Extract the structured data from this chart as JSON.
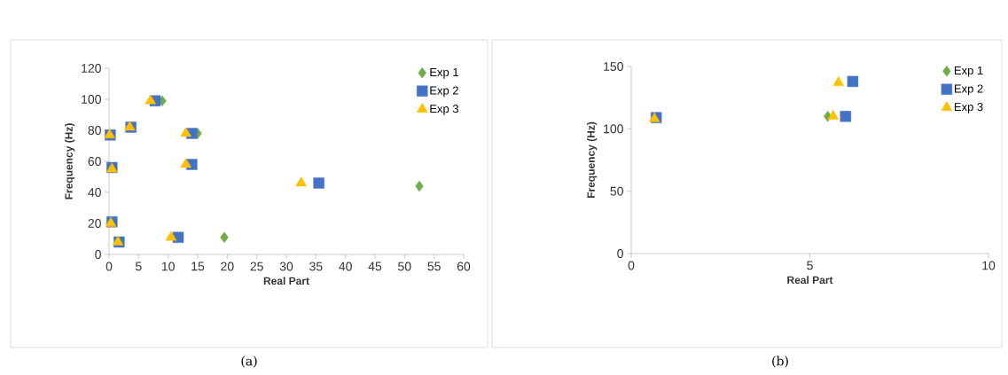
{
  "chart_data": [
    {
      "type": "scatter",
      "xlabel": "Real Part",
      "ylabel": "Frequency (Hz)",
      "annotations": [
        "(a)"
      ],
      "xlim": [
        0,
        60
      ],
      "ylim": [
        0,
        120
      ],
      "xticks": [
        0,
        5,
        10,
        15,
        20,
        25,
        30,
        35,
        40,
        45,
        50,
        55,
        60
      ],
      "yticks": [
        0,
        20,
        40,
        60,
        80,
        100,
        120
      ],
      "legend": "top right",
      "grid": false,
      "series": [
        {
          "name": "Exp 1",
          "color": "#70ad47",
          "marker": "diamond",
          "x": [
            9,
            15,
            19.5,
            52.5
          ],
          "values": [
            99,
            78,
            11,
            44
          ]
        },
        {
          "name": "Exp 2",
          "color": "#4472c4",
          "marker": "square",
          "x": [
            7.8,
            14,
            14,
            11.7,
            35.5,
            0.2,
            0.5,
            0.5,
            1.7,
            3.7
          ],
          "values": [
            99,
            78,
            58,
            11,
            46,
            77,
            56,
            21,
            8,
            82
          ]
        },
        {
          "name": "Exp 3",
          "color": "#ffc000",
          "marker": "triangle",
          "x": [
            7,
            13,
            13,
            10.5,
            32.5,
            0.1,
            0.5,
            0.3,
            1.5,
            3.5
          ],
          "values": [
            99,
            78,
            58,
            11,
            46,
            77,
            55,
            20,
            8,
            82
          ]
        }
      ]
    },
    {
      "type": "scatter",
      "xlabel": "Real Part",
      "ylabel": "Frequency (Hz)",
      "annotations": [
        "(b)"
      ],
      "xlim": [
        0,
        10
      ],
      "ylim": [
        0,
        150
      ],
      "xticks": [
        0,
        5,
        10
      ],
      "yticks": [
        0,
        50,
        100,
        150
      ],
      "legend": "top right",
      "grid": false,
      "series": [
        {
          "name": "Exp 1",
          "color": "#70ad47",
          "marker": "diamond",
          "x": [
            5.5
          ],
          "values": [
            110
          ]
        },
        {
          "name": "Exp 2",
          "color": "#4472c4",
          "marker": "square",
          "x": [
            0.7,
            6.0,
            6.2
          ],
          "values": [
            109,
            110,
            138
          ]
        },
        {
          "name": "Exp 3",
          "color": "#ffc000",
          "marker": "triangle",
          "x": [
            0.65,
            5.65,
            5.8
          ],
          "values": [
            108,
            110,
            137
          ]
        }
      ]
    }
  ]
}
